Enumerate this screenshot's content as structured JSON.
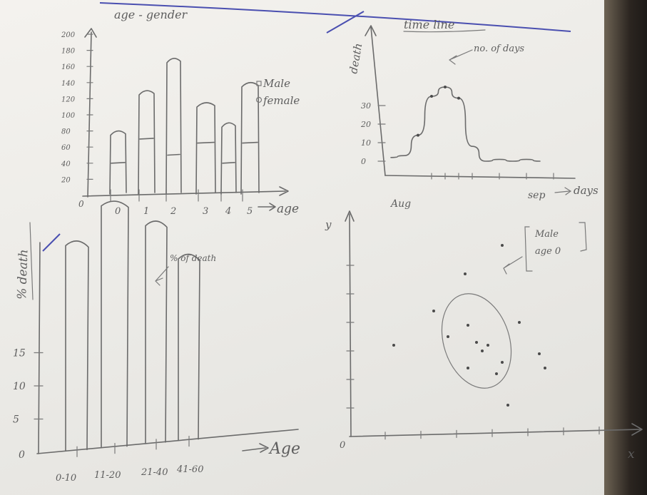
{
  "chart_data": [
    {
      "type": "bar",
      "title": "age - gender",
      "xlabel": "age",
      "x_ticks": [
        "0",
        "1",
        "2",
        "3",
        "4",
        "5"
      ],
      "y_ticks": [
        "20",
        "40",
        "60",
        "80",
        "100",
        "120",
        "140",
        "160",
        "180",
        "200"
      ],
      "ylim": [
        0,
        200
      ],
      "legend": {
        "placement": "right",
        "entries": [
          "Male",
          "female"
        ]
      },
      "categories": [
        "0",
        "1",
        "2",
        "3",
        "4",
        "5"
      ],
      "series": [
        {
          "name": "Male",
          "values": [
            40,
            70,
            50,
            65,
            40,
            65
          ]
        },
        {
          "name": "female",
          "values": [
            80,
            130,
            170,
            115,
            90,
            140
          ]
        }
      ]
    },
    {
      "type": "line",
      "title": "time line",
      "ylabel": "death",
      "xlabel": "days",
      "x_ticks": [
        "Aug",
        "sep"
      ],
      "y_ticks": [
        "0",
        "10",
        "20",
        "30"
      ],
      "annotation": "no. of days",
      "x": [
        0,
        1,
        2,
        3,
        4,
        5,
        6,
        7,
        8,
        9,
        10,
        11
      ],
      "y": [
        2,
        3,
        14,
        35,
        40,
        34,
        8,
        0,
        1,
        0,
        1,
        0
      ]
    },
    {
      "type": "bar",
      "ylabel": "% death",
      "xlabel": "Age",
      "y_ticks": [
        "0",
        "5",
        "10",
        "15"
      ],
      "annotation": "% of death",
      "categories": [
        "0-10",
        "11-20",
        "21-40",
        "41-60"
      ],
      "values": [
        32,
        38,
        35,
        30
      ]
    },
    {
      "type": "scatter",
      "xlabel": "x",
      "ylabel": "y",
      "annotation": "Male age 0",
      "points": [
        [
          1.5,
          3.2
        ],
        [
          2.9,
          4.4
        ],
        [
          4.0,
          5.7
        ],
        [
          5.3,
          6.7
        ],
        [
          3.4,
          3.5
        ],
        [
          4.1,
          3.9
        ],
        [
          4.4,
          3.3
        ],
        [
          4.6,
          3.0
        ],
        [
          4.8,
          3.2
        ],
        [
          5.3,
          2.6
        ],
        [
          5.1,
          2.2
        ],
        [
          4.1,
          2.4
        ],
        [
          5.9,
          4.0
        ],
        [
          6.6,
          2.9
        ],
        [
          6.8,
          2.4
        ],
        [
          5.5,
          1.1
        ]
      ],
      "xlim": [
        0,
        10
      ],
      "ylim": [
        0,
        8
      ]
    }
  ]
}
